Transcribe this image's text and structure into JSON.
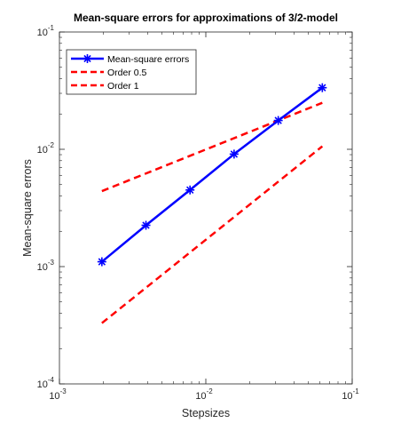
{
  "chart_data": {
    "type": "line",
    "title": "Mean-square errors for approximations of 3/2-model",
    "xlabel": "Stepsizes",
    "ylabel": "Mean-square errors",
    "x_scale": "log",
    "y_scale": "log",
    "xlim": [
      0.001,
      0.1
    ],
    "ylim": [
      0.0001,
      0.1
    ],
    "x_ticks": [
      {
        "base": "10",
        "exp": "-3",
        "value": 0.001
      },
      {
        "base": "10",
        "exp": "-2",
        "value": 0.01
      },
      {
        "base": "10",
        "exp": "-1",
        "value": 0.1
      }
    ],
    "y_ticks": [
      {
        "base": "10",
        "exp": "-4",
        "value": 0.0001
      },
      {
        "base": "10",
        "exp": "-3",
        "value": 0.001
      },
      {
        "base": "10",
        "exp": "-2",
        "value": 0.01
      },
      {
        "base": "10",
        "exp": "-1",
        "value": 0.1
      }
    ],
    "grid": false,
    "legend_position": "top-left",
    "series": [
      {
        "name": "Mean-square errors",
        "color": "#0000ff",
        "style": "solid",
        "marker": "asterisk",
        "x": [
          0.00195,
          0.0039,
          0.0078,
          0.0156,
          0.03125,
          0.0625
        ],
        "y": [
          0.0011,
          0.00225,
          0.0045,
          0.0091,
          0.0176,
          0.0335
        ]
      },
      {
        "name": "Order 0.5",
        "color": "#ff0000",
        "style": "dashed",
        "x": [
          0.00195,
          0.0625
        ],
        "y": [
          0.0044,
          0.0249
        ]
      },
      {
        "name": "Order 1",
        "color": "#ff0000",
        "style": "dashed",
        "x": [
          0.00195,
          0.0625
        ],
        "y": [
          0.00033,
          0.0106
        ]
      }
    ]
  }
}
